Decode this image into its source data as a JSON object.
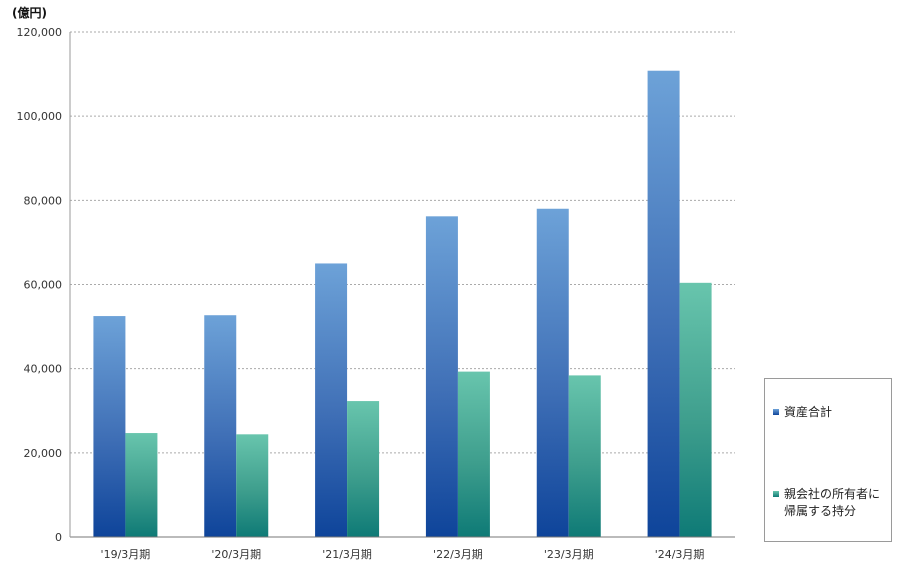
{
  "chart_data": {
    "type": "bar",
    "unit_label": "(億円)",
    "categories": [
      "'19/3月期",
      "'20/3月期",
      "'21/3月期",
      "'22/3月期",
      "'23/3月期",
      "'24/3月期"
    ],
    "series": [
      {
        "name": "資産合計",
        "values": [
          52500,
          52700,
          65000,
          76200,
          78000,
          110800
        ],
        "color": "#3f6fb0"
      },
      {
        "name": "親会社の所有者に帰属する持分",
        "values": [
          24700,
          24400,
          32300,
          39300,
          38400,
          60400
        ],
        "color": "#3aa58c"
      }
    ],
    "ylim": [
      0,
      120000
    ],
    "yticks": [
      0,
      20000,
      40000,
      60000,
      80000,
      100000,
      120000
    ],
    "ytick_labels": [
      "0",
      "20,000",
      "40,000",
      "60,000",
      "80,000",
      "100,000",
      "120,000"
    ],
    "grid": true,
    "legend_position": "right"
  },
  "legend": {
    "item1": "資産合計",
    "item2_line1": "親会社の所有者に",
    "item2_line2": "帰属する持分"
  }
}
